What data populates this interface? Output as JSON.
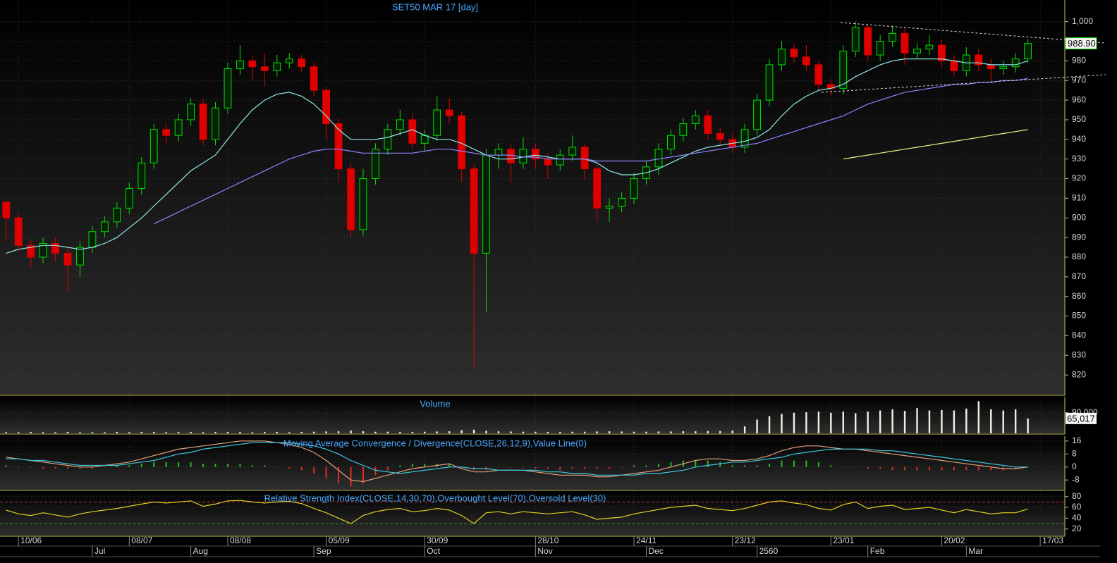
{
  "chart_data": [
    {
      "type": "candlestick",
      "title": "SET50 MAR 17   [day]",
      "grid": true,
      "xlim": [
        -0.5,
        86
      ],
      "ylim": [
        810,
        1011
      ],
      "yticks": [
        820,
        830,
        840,
        850,
        860,
        870,
        880,
        890,
        900,
        910,
        920,
        930,
        940,
        950,
        960,
        970,
        980,
        990,
        {
          "value": 1000,
          "label": "1,000"
        }
      ],
      "up_color": "#00e000",
      "down_color": "#e00000",
      "open": [
        908,
        900,
        886,
        880,
        887,
        882,
        876,
        885,
        893,
        898,
        905,
        915,
        928,
        945,
        942,
        950,
        958,
        940,
        956,
        976,
        980,
        977,
        975,
        979,
        981,
        977,
        965,
        948,
        925,
        894,
        920,
        935,
        945,
        950,
        938,
        942,
        955,
        952,
        925,
        882,
        932,
        935,
        928,
        935,
        930,
        927,
        932,
        936,
        925,
        905,
        906,
        910,
        920,
        926,
        935,
        942,
        948,
        952,
        943,
        940,
        936,
        945,
        960,
        978,
        986,
        982,
        978,
        968,
        966,
        985,
        997,
        983,
        990,
        994,
        984,
        986,
        988,
        980,
        975,
        983,
        978,
        976,
        977,
        981
      ],
      "high": [
        910,
        902,
        889,
        890,
        890,
        885,
        888,
        896,
        901,
        908,
        918,
        931,
        948,
        948,
        953,
        961,
        961,
        959,
        979,
        988,
        983,
        984,
        983,
        984,
        983,
        979,
        967,
        951,
        928,
        925,
        938,
        948,
        955,
        953,
        945,
        962,
        961,
        954,
        927,
        935,
        938,
        938,
        941,
        938,
        933,
        935,
        942,
        938,
        927,
        910,
        913,
        923,
        929,
        938,
        945,
        951,
        955,
        955,
        946,
        943,
        948,
        963,
        981,
        990,
        989,
        988,
        980,
        971,
        988,
        1000,
        999,
        993,
        998,
        997,
        989,
        993,
        991,
        983,
        987,
        986,
        981,
        980,
        984,
        991
      ],
      "low": [
        888,
        883,
        875,
        877,
        878,
        862,
        870,
        882,
        890,
        895,
        902,
        912,
        925,
        938,
        939,
        947,
        937,
        937,
        953,
        973,
        970,
        967,
        972,
        976,
        974,
        962,
        940,
        918,
        890,
        891,
        917,
        932,
        942,
        935,
        934,
        939,
        948,
        918,
        824,
        852,
        925,
        918,
        925,
        925,
        920,
        924,
        929,
        920,
        898,
        898,
        903,
        907,
        917,
        922,
        932,
        939,
        945,
        940,
        937,
        933,
        933,
        942,
        957,
        975,
        979,
        975,
        965,
        962,
        963,
        982,
        980,
        980,
        987,
        978,
        981,
        983,
        977,
        972,
        972,
        975,
        970,
        973,
        974,
        979
      ],
      "close": [
        900,
        886,
        880,
        887,
        882,
        876,
        885,
        893,
        898,
        905,
        915,
        928,
        945,
        942,
        950,
        958,
        940,
        956,
        976,
        980,
        977,
        975,
        979,
        981,
        977,
        965,
        948,
        925,
        894,
        920,
        935,
        945,
        950,
        938,
        942,
        955,
        952,
        925,
        882,
        932,
        935,
        928,
        935,
        930,
        927,
        932,
        936,
        925,
        905,
        906,
        910,
        920,
        926,
        935,
        942,
        948,
        952,
        943,
        940,
        936,
        945,
        960,
        978,
        986,
        982,
        978,
        968,
        966,
        985,
        997,
        983,
        990,
        994,
        984,
        986,
        988,
        980,
        975,
        983,
        978,
        976,
        977,
        981,
        988.9
      ],
      "last_label": "988.90",
      "series": [
        {
          "color": "#8fe8e8",
          "values": [
            882,
            884,
            885,
            886,
            886,
            885,
            884,
            885,
            887,
            890,
            895,
            900,
            906,
            912,
            918,
            924,
            928,
            932,
            940,
            948,
            955,
            960,
            963,
            964,
            962,
            958,
            952,
            945,
            940,
            940,
            940,
            941,
            943,
            945,
            942,
            940,
            940,
            938,
            935,
            932,
            930,
            930,
            931,
            932,
            931,
            930,
            930,
            930,
            928,
            924,
            922,
            922,
            923,
            925,
            928,
            931,
            934,
            936,
            937,
            938,
            939,
            941,
            945,
            952,
            958,
            962,
            965,
            966,
            968,
            972,
            975,
            978,
            980,
            981,
            981,
            981,
            981,
            980,
            979,
            979,
            978,
            978,
            978,
            980
          ]
        },
        {
          "color": "#8a84ff",
          "values": [
            null,
            null,
            null,
            null,
            null,
            null,
            null,
            null,
            null,
            null,
            null,
            null,
            897,
            900,
            903,
            906,
            909,
            912,
            915,
            918,
            921,
            924,
            927,
            930,
            932,
            934,
            935,
            935,
            934,
            933,
            933,
            933,
            933,
            933,
            934,
            935,
            935,
            934,
            933,
            932,
            932,
            932,
            931,
            931,
            930,
            930,
            930,
            930,
            929,
            929,
            929,
            929,
            929,
            930,
            931,
            932,
            933,
            934,
            935,
            936,
            937,
            938,
            940,
            942,
            944,
            946,
            948,
            950,
            952,
            955,
            958,
            960,
            962,
            964,
            965,
            966,
            967,
            968,
            968,
            969,
            969,
            970,
            970,
            971
          ]
        },
        {
          "color": "#f4f08a",
          "values": [
            null,
            null,
            null,
            null,
            null,
            null,
            null,
            null,
            null,
            null,
            null,
            null,
            null,
            null,
            null,
            null,
            null,
            null,
            null,
            null,
            null,
            null,
            null,
            null,
            null,
            null,
            null,
            null,
            null,
            null,
            null,
            null,
            null,
            null,
            null,
            null,
            null,
            null,
            null,
            null,
            null,
            null,
            null,
            null,
            null,
            null,
            null,
            null,
            null,
            null,
            null,
            null,
            null,
            null,
            null,
            null,
            null,
            null,
            null,
            null,
            null,
            null,
            null,
            null,
            null,
            null,
            null,
            null,
            930,
            931,
            932,
            933,
            934,
            935,
            936,
            937,
            938,
            939,
            940,
            941,
            942,
            943,
            944,
            945
          ]
        }
      ]
    },
    {
      "type": "bar",
      "title": "Volume",
      "grid": true,
      "xlim": [
        -0.5,
        86
      ],
      "ylim": [
        0,
        160000
      ],
      "yticks": [
        {
          "value": 90000,
          "label": "90,000"
        }
      ],
      "color": "#f2f2e4",
      "values": [
        5000,
        5000,
        6000,
        5000,
        5000,
        6000,
        5000,
        5000,
        5000,
        6000,
        5000,
        6000,
        6000,
        5000,
        6000,
        6000,
        5000,
        6000,
        6000,
        6000,
        5000,
        6000,
        6000,
        5000,
        6000,
        7000,
        8000,
        9000,
        12000,
        9000,
        7000,
        7000,
        6000,
        6000,
        7000,
        8000,
        9000,
        14000,
        16000,
        11000,
        9000,
        8000,
        7000,
        7000,
        6000,
        6000,
        7000,
        7000,
        8000,
        9000,
        8000,
        7000,
        7000,
        8000,
        8000,
        9000,
        9000,
        10000,
        10000,
        12000,
        30000,
        60000,
        75000,
        85000,
        90000,
        92000,
        95000,
        90000,
        95000,
        88000,
        95000,
        100000,
        105000,
        98000,
        110000,
        100000,
        102000,
        100000,
        108000,
        140000,
        105000,
        100000,
        105000,
        65017
      ],
      "last_label": "65,017"
    },
    {
      "type": "line",
      "title": "Moving Average Convergence / Divergence(CLOSE,26,12,9),Value Line(0)",
      "grid": true,
      "xlim": [
        -0.5,
        86
      ],
      "ylim": [
        -14,
        19
      ],
      "yticks": [
        16,
        8,
        0,
        -8
      ],
      "series": [
        {
          "type": "bar",
          "color": "#20c020",
          "negative_color": "#e03020",
          "values": [
            1,
            0,
            0,
            -1,
            -1,
            -1,
            -1,
            -1,
            0,
            1,
            1,
            2,
            3,
            3,
            3,
            3,
            2,
            2,
            2,
            2,
            1,
            1,
            0,
            -1,
            -2,
            -4,
            -7,
            -10,
            -12,
            -10,
            -5,
            -2,
            1,
            2,
            2,
            2,
            2,
            -1,
            -2,
            -2,
            0,
            0,
            0,
            -1,
            -1,
            -2,
            -1,
            -1,
            -1,
            -1,
            0,
            1,
            1,
            2,
            3,
            4,
            4,
            4,
            3,
            1,
            1,
            1,
            2,
            4,
            4,
            4,
            3,
            1,
            0,
            0,
            -1,
            -1,
            -2,
            -2,
            -2,
            -2,
            -2,
            -2,
            -2,
            -2,
            -2,
            -2,
            -1,
            0
          ]
        },
        {
          "type": "line",
          "color": "#e0a07a",
          "values": [
            6,
            5,
            4,
            3,
            2,
            1,
            0,
            0,
            1,
            2,
            3,
            5,
            7,
            9,
            11,
            12,
            13,
            14,
            15,
            16,
            16,
            16,
            15,
            14,
            12,
            9,
            4,
            -2,
            -8,
            -9,
            -7,
            -5,
            -3,
            -1,
            0,
            1,
            2,
            -1,
            -3,
            -3,
            -2,
            -2,
            -2,
            -3,
            -4,
            -5,
            -5,
            -5,
            -6,
            -6,
            -5,
            -4,
            -3,
            -2,
            0,
            2,
            4,
            5,
            5,
            4,
            4,
            5,
            7,
            10,
            12,
            13,
            13,
            12,
            11,
            11,
            10,
            9,
            8,
            7,
            6,
            5,
            4,
            3,
            2,
            1,
            0,
            -1,
            -1,
            0
          ]
        },
        {
          "type": "line",
          "color": "#3cc8e0",
          "values": [
            5,
            5,
            4,
            4,
            3,
            2,
            1,
            1,
            1,
            1,
            2,
            3,
            4,
            6,
            8,
            9,
            11,
            12,
            13,
            14,
            15,
            15,
            15,
            15,
            14,
            13,
            11,
            8,
            4,
            1,
            -2,
            -3,
            -4,
            -3,
            -2,
            -1,
            0,
            0,
            -1,
            -1,
            -2,
            -2,
            -2,
            -2,
            -3,
            -3,
            -4,
            -4,
            -5,
            -5,
            -5,
            -5,
            -4,
            -4,
            -3,
            -2,
            0,
            1,
            2,
            3,
            3,
            4,
            5,
            6,
            8,
            9,
            10,
            11,
            11,
            11,
            11,
            10,
            10,
            9,
            8,
            7,
            6,
            5,
            4,
            3,
            2,
            1,
            0,
            0
          ]
        }
      ]
    },
    {
      "type": "line",
      "title": "Relative Strength Index(CLOSE,14,30,70),Overbought Level(70),Oversold Level(30)",
      "grid": true,
      "xlim": [
        -0.5,
        86
      ],
      "ylim": [
        8,
        90
      ],
      "yticks": [
        80,
        60,
        40,
        20
      ],
      "levels": [
        {
          "value": 70,
          "color": "#c03030"
        },
        {
          "value": 30,
          "color": "#30a030"
        }
      ],
      "series": [
        {
          "type": "line",
          "color": "#e4d020",
          "values": [
            55,
            48,
            45,
            50,
            46,
            42,
            48,
            52,
            55,
            58,
            62,
            66,
            70,
            68,
            70,
            72,
            62,
            66,
            72,
            73,
            70,
            68,
            70,
            71,
            67,
            58,
            50,
            40,
            30,
            45,
            52,
            56,
            58,
            52,
            54,
            58,
            55,
            45,
            30,
            50,
            52,
            48,
            52,
            50,
            48,
            50,
            52,
            46,
            38,
            40,
            42,
            48,
            52,
            56,
            60,
            62,
            64,
            58,
            56,
            54,
            58,
            64,
            70,
            72,
            68,
            65,
            58,
            55,
            65,
            70,
            58,
            62,
            64,
            56,
            58,
            60,
            55,
            50,
            56,
            52,
            48,
            50,
            50,
            57
          ]
        }
      ],
      "xticks": [
        {
          "value": 1,
          "label": "10/06"
        },
        {
          "value": 10,
          "label": "08/07"
        },
        {
          "value": 18,
          "label": "08/08"
        },
        {
          "value": 26,
          "label": "05/09"
        },
        {
          "value": 34,
          "label": "30/09"
        },
        {
          "value": 43,
          "label": "28/10"
        },
        {
          "value": 51,
          "label": "24/11"
        },
        {
          "value": 59,
          "label": "23/12"
        },
        {
          "value": 67,
          "label": "23/01"
        },
        {
          "value": 76,
          "label": "20/02"
        },
        {
          "value": 84,
          "label": "17/03"
        }
      ],
      "xticks_secondary": [
        {
          "value": 7,
          "label": "Jul"
        },
        {
          "value": 15,
          "label": "Aug"
        },
        {
          "value": 25,
          "label": "Sep"
        },
        {
          "value": 34,
          "label": "Oct"
        },
        {
          "value": 43,
          "label": "Nov"
        },
        {
          "value": 52,
          "label": "Dec"
        },
        {
          "value": 61,
          "label": "2560"
        },
        {
          "value": 70,
          "label": "Feb"
        },
        {
          "value": 78,
          "label": "Mar"
        }
      ]
    }
  ]
}
